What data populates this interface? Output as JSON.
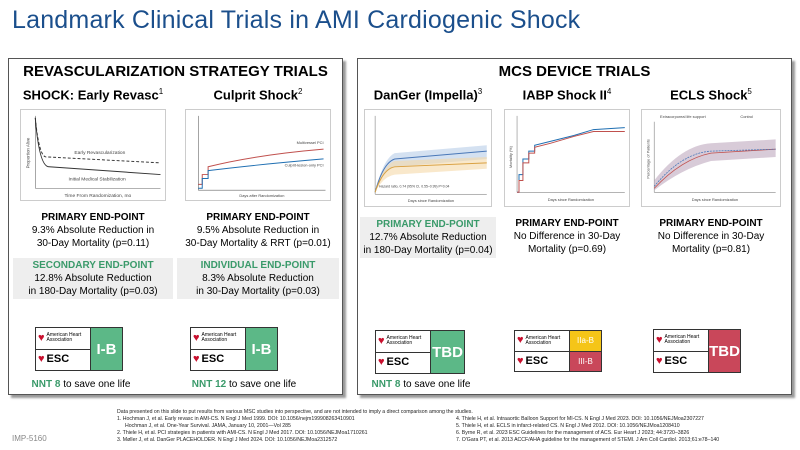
{
  "title": "Landmark Clinical Trials in AMI Cardiogenic Shock",
  "left_panel": {
    "heading": "REVASCULARIZATION STRATEGY TRIALS",
    "trials": [
      {
        "name": "SHOCK: Early Revasc",
        "ref": "1",
        "chart_xlabel": "Time From Randomization, mo",
        "chart_ylabel": "Proportion Alive",
        "series_labels": [
          "Early Revascularization",
          "Initial Medical Stabilization"
        ],
        "primary": {
          "label": "PRIMARY END-POINT",
          "line1": "9.3% Absolute Reduction in",
          "line2": "30-Day Mortality (p=0.11)"
        },
        "secondary": {
          "label": "SECONDARY END-POINT",
          "line1": "12.8% Absolute Reduction",
          "line2": "in 180-Day Mortality (p=0.03)"
        },
        "guideline": {
          "aha": "American Heart Association",
          "esc": "ESC",
          "class": "I-B"
        },
        "nnt_value": "NNT 8",
        "nnt_text": " to save one life"
      },
      {
        "name": "Culprit Shock",
        "ref": "2",
        "chart_xlabel": "Days after Randomization",
        "series_labels": [
          "Multivessel PCI",
          "Culprit-lesion-only PCI"
        ],
        "primary": {
          "label": "PRIMARY END-POINT",
          "line1": "9.5% Absolute Reduction in",
          "line2": "30-Day Mortality & RRT (p=0.01)"
        },
        "secondary": {
          "label": "INDIVIDUAL END-POINT",
          "line1": "8.3% Absolute Reduction",
          "line2": "in 30-Day Mortality (p=0.03)"
        },
        "guideline": {
          "aha": "American Heart Association",
          "esc": "ESC",
          "class": "I-B"
        },
        "nnt_value": "NNT 12",
        "nnt_text": " to save one life"
      }
    ]
  },
  "right_panel": {
    "heading": "MCS DEVICE TRIALS",
    "trials": [
      {
        "name": "DanGer (Impella)",
        "ref": "3",
        "chart_note": "Hazard ratio, 0.74 (95% CI, 0.55–0.99) P=0.04",
        "chart_xlabel": "Days since Randomization",
        "primary": {
          "label": "PRIMARY END-POINT",
          "line1": "12.7% Absolute Reduction",
          "line2": "in 180-Day Mortality (p=0.04)"
        },
        "guideline": {
          "aha": "American Heart Association",
          "esc": "ESC",
          "class": "TBD"
        },
        "nnt_value": "NNT 8",
        "nnt_text": " to save one life"
      },
      {
        "name": "IABP Shock II",
        "ref": "4",
        "chart_xlabel": "Days since Randomization",
        "chart_ylabel": "Mortality (%)",
        "primary": {
          "label": "PRIMARY END-POINT",
          "line1": "No Difference in 30-Day",
          "line2": "Mortality (p=0.69)"
        },
        "guideline": {
          "aha": "American Heart Association",
          "esc": "ESC",
          "class_aha": "IIa-B",
          "class_esc": "III-B"
        }
      },
      {
        "name": "ECLS Shock",
        "ref": "5",
        "chart_xlabel": "Days since Randomization",
        "chart_ylabel": "Percentage of Patients",
        "legend": [
          "Extracorporeal life support",
          "Control"
        ],
        "primary": {
          "label": "PRIMARY END-POINT",
          "line1": "No Difference in 30-Day",
          "line2": "Mortality (p=0.81)"
        },
        "guideline": {
          "aha": "American Heart Association",
          "esc": "ESC",
          "class": "TBD"
        }
      }
    ]
  },
  "colors": {
    "title": "#1b4f8c",
    "green": "#5cb887",
    "yellow": "#f5c518",
    "red": "#c9475a"
  },
  "footer": {
    "disclaimer": "Data presented on this slide to put results from various MSC studies into perspective, and are not intended to imply a direct comparison among the studies.",
    "refs_left": [
      "1. Hochman J, et al. Early revasc in AMI-CS. N Engl J Med 1999. DOI: 10.1056/nejm199908263410901",
      "    Hochman J, et al. One-Year Survival. JAMA, January 10, 2001—Vol 285",
      "2. Thiele H, et al. PCI strategies in patients with AMI-CS. N Engl J Med 2017. DOI: 10.1056/NEJMoa1710261",
      "3. Møller J, et al. DanGer PLACEHOLDER. N Engl J Med 2024. DOI: 10.1056/NEJMoa2312572"
    ],
    "refs_right": [
      "4. Thiele H, et al. Intraaortic Balloon Support for MI-CS. N Engl J Med 2023. DOI: 10.1056/NEJMoa2307227",
      "5. Thiele H, et al. ECLS in infarct-related CS. N Engl J Med 2012. DOI: 10.1056/NEJMoa1208410",
      "6. Byrne R, et al. 2023 ESC Guidelines for the management of ACS. Eur Heart J 2023; 44:3720–3826",
      "7. O'Gara PT, et al. 2013 ACCF/AHA guideline for the management of STEMI. J Am Coll Cardiol. 2013;61:e78–140"
    ],
    "doc_id": "IMP-5160"
  }
}
